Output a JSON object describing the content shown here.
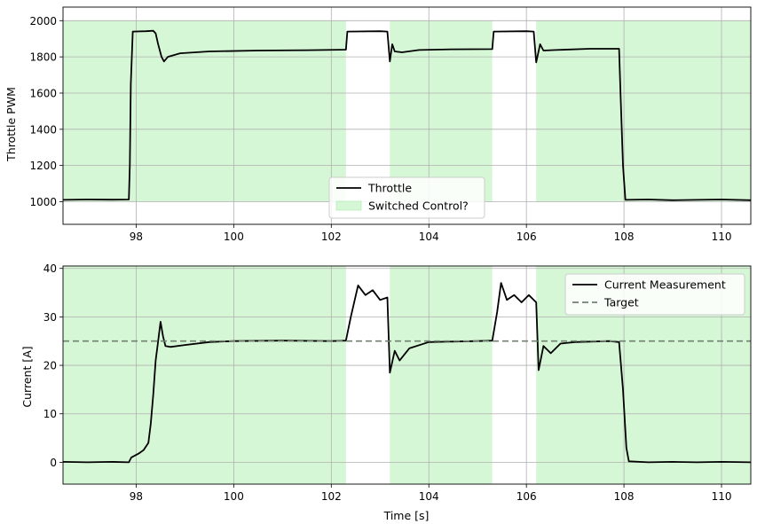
{
  "chart_data": [
    {
      "type": "line",
      "xlabel": "",
      "ylabel": "Throttle PWM",
      "xlim": [
        96.5,
        110.6
      ],
      "ylim": [
        875,
        2075
      ],
      "xticks": [
        98,
        100,
        102,
        104,
        106,
        108,
        110
      ],
      "yticks": [
        1000,
        1200,
        1400,
        1600,
        1800,
        2000
      ],
      "grid": true,
      "legend_position": "bottom-center",
      "shaded_regions": {
        "name": "Switched Control?",
        "color": "#d6f7d6",
        "ranges": [
          [
            96.5,
            102.3
          ],
          [
            103.2,
            105.3
          ],
          [
            106.2,
            110.6
          ]
        ],
        "y_range": [
          1000,
          2000
        ]
      },
      "series": [
        {
          "name": "Throttle",
          "color": "#000000",
          "points": [
            [
              96.5,
              1010
            ],
            [
              97.0,
              1012
            ],
            [
              97.5,
              1011
            ],
            [
              97.85,
              1012
            ],
            [
              97.87,
              1200
            ],
            [
              97.89,
              1650
            ],
            [
              97.93,
              1940
            ],
            [
              98.2,
              1942
            ],
            [
              98.35,
              1944
            ],
            [
              98.4,
              1930
            ],
            [
              98.45,
              1870
            ],
            [
              98.52,
              1800
            ],
            [
              98.57,
              1775
            ],
            [
              98.65,
              1800
            ],
            [
              98.9,
              1820
            ],
            [
              99.5,
              1830
            ],
            [
              100.5,
              1835
            ],
            [
              101.5,
              1837
            ],
            [
              102.3,
              1840
            ],
            [
              102.33,
              1940
            ],
            [
              103.0,
              1942
            ],
            [
              103.15,
              1940
            ],
            [
              103.2,
              1775
            ],
            [
              103.25,
              1870
            ],
            [
              103.3,
              1830
            ],
            [
              103.45,
              1825
            ],
            [
              103.8,
              1838
            ],
            [
              104.5,
              1842
            ],
            [
              105.3,
              1843
            ],
            [
              105.33,
              1940
            ],
            [
              106.0,
              1942
            ],
            [
              106.15,
              1940
            ],
            [
              106.2,
              1770
            ],
            [
              106.28,
              1870
            ],
            [
              106.35,
              1835
            ],
            [
              106.6,
              1838
            ],
            [
              107.3,
              1845
            ],
            [
              107.9,
              1845
            ],
            [
              107.93,
              1600
            ],
            [
              107.98,
              1200
            ],
            [
              108.03,
              1010
            ],
            [
              108.5,
              1012
            ],
            [
              109.0,
              1008
            ],
            [
              109.5,
              1010
            ],
            [
              110.0,
              1012
            ],
            [
              110.6,
              1008
            ]
          ]
        }
      ]
    },
    {
      "type": "line",
      "xlabel": "Time [s]",
      "ylabel": "Current [A]",
      "xlim": [
        96.5,
        110.6
      ],
      "ylim": [
        -4.5,
        40.5
      ],
      "xticks": [
        98,
        100,
        102,
        104,
        106,
        108,
        110
      ],
      "yticks": [
        0,
        10,
        20,
        30,
        40
      ],
      "grid": true,
      "legend_position": "top-right",
      "shaded_regions": {
        "color": "#d6f7d6",
        "ranges": [
          [
            96.5,
            102.3
          ],
          [
            103.2,
            105.3
          ],
          [
            106.2,
            110.6
          ]
        ],
        "y_range": [
          -4.5,
          40.5
        ]
      },
      "series": [
        {
          "name": "Current Measurement",
          "color": "#000000",
          "points": [
            [
              96.5,
              0.1
            ],
            [
              97.0,
              0.0
            ],
            [
              97.5,
              0.1
            ],
            [
              97.85,
              0.0
            ],
            [
              97.9,
              1.0
            ],
            [
              98.05,
              1.8
            ],
            [
              98.15,
              2.5
            ],
            [
              98.25,
              4.0
            ],
            [
              98.3,
              8.0
            ],
            [
              98.35,
              14.0
            ],
            [
              98.4,
              21.0
            ],
            [
              98.45,
              25.0
            ],
            [
              98.5,
              29.0
            ],
            [
              98.55,
              26.0
            ],
            [
              98.6,
              24.0
            ],
            [
              98.7,
              23.8
            ],
            [
              99.0,
              24.2
            ],
            [
              99.5,
              24.8
            ],
            [
              100.0,
              25.0
            ],
            [
              101.0,
              25.1
            ],
            [
              102.0,
              25.0
            ],
            [
              102.3,
              25.1
            ],
            [
              102.4,
              30.0
            ],
            [
              102.55,
              36.5
            ],
            [
              102.7,
              34.5
            ],
            [
              102.85,
              35.5
            ],
            [
              103.0,
              33.5
            ],
            [
              103.15,
              34.0
            ],
            [
              103.2,
              18.5
            ],
            [
              103.3,
              23.0
            ],
            [
              103.4,
              21.0
            ],
            [
              103.6,
              23.5
            ],
            [
              104.0,
              24.8
            ],
            [
              105.0,
              25.0
            ],
            [
              105.3,
              25.1
            ],
            [
              105.4,
              31.0
            ],
            [
              105.48,
              37.0
            ],
            [
              105.6,
              33.5
            ],
            [
              105.75,
              34.5
            ],
            [
              105.9,
              33.0
            ],
            [
              106.05,
              34.5
            ],
            [
              106.2,
              33.0
            ],
            [
              106.25,
              19.0
            ],
            [
              106.35,
              24.0
            ],
            [
              106.5,
              22.5
            ],
            [
              106.7,
              24.5
            ],
            [
              107.0,
              24.8
            ],
            [
              107.7,
              25.0
            ],
            [
              107.9,
              24.8
            ],
            [
              107.98,
              15.0
            ],
            [
              108.05,
              3.0
            ],
            [
              108.1,
              0.2
            ],
            [
              108.5,
              0.0
            ],
            [
              109.0,
              0.1
            ],
            [
              109.5,
              0.0
            ],
            [
              110.0,
              0.1
            ],
            [
              110.6,
              0.0
            ]
          ]
        },
        {
          "name": "Target",
          "color": "#708070",
          "dashed": true,
          "points": [
            [
              96.5,
              25
            ],
            [
              110.6,
              25
            ]
          ]
        }
      ]
    }
  ]
}
